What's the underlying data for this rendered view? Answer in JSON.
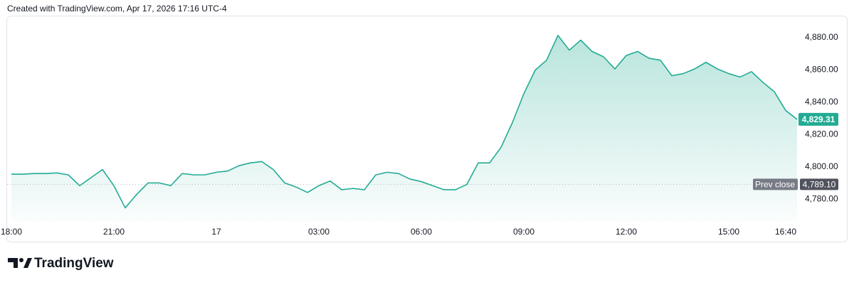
{
  "chart_data": {
    "type": "area",
    "title": "Created with TradingView.com, Apr 17, 2026 17:16 UTC-4",
    "brand": "TradingView",
    "color": "#22ab94",
    "categories": [
      "18:00",
      null,
      null,
      null,
      null,
      null,
      null,
      null,
      null,
      "21:00",
      null,
      null,
      null,
      null,
      null,
      null,
      null,
      null,
      "17",
      null,
      null,
      null,
      null,
      null,
      null,
      null,
      null,
      "03:00",
      null,
      null,
      null,
      null,
      null,
      null,
      null,
      null,
      "06:00",
      null,
      null,
      null,
      null,
      null,
      null,
      null,
      null,
      "09:00",
      null,
      null,
      null,
      null,
      null,
      null,
      null,
      null,
      "12:00",
      null,
      null,
      null,
      null,
      null,
      null,
      null,
      null,
      "15:00",
      null,
      null,
      null,
      null,
      "16:40",
      null
    ],
    "values": [
      4795.4,
      4795.4,
      4795.8,
      4795.8,
      4796.2,
      4795,
      4788.3,
      4793.3,
      4798.3,
      4788.3,
      4774.6,
      4782.9,
      4790,
      4790,
      4788.3,
      4795.8,
      4795,
      4795,
      4796.6,
      4797.4,
      4800.7,
      4802.4,
      4803.2,
      4798.3,
      4790,
      4787.5,
      4784.1,
      4788.3,
      4791.2,
      4785.8,
      4786.6,
      4785.8,
      4795,
      4796.6,
      4795.8,
      4792.4,
      4790.8,
      4788.3,
      4785.8,
      4785.8,
      4789.1,
      4802.4,
      4802.4,
      4812,
      4827.3,
      4845.1,
      4859.7,
      4865.9,
      4881.2,
      4872.1,
      4878.3,
      4871.3,
      4868,
      4860.5,
      4868.8,
      4871.3,
      4867.1,
      4865.9,
      4856.3,
      4857.6,
      4860.5,
      4864.6,
      4860.5,
      4857.6,
      4855.5,
      4858.8,
      4852.2,
      4846.4,
      4834.8,
      4829.31
    ],
    "value_labels": [
      null,
      null,
      null,
      null,
      null,
      null,
      null,
      null,
      null,
      null,
      null,
      null,
      null,
      null,
      null,
      null,
      null,
      null,
      null,
      null,
      null,
      null,
      null,
      null,
      null,
      null,
      null,
      null,
      null,
      null,
      null,
      null,
      null,
      null,
      null,
      null,
      null,
      null,
      null,
      null,
      null,
      null,
      null,
      null,
      null,
      null,
      null,
      null,
      null,
      null,
      null,
      null,
      null,
      null,
      null,
      null,
      null,
      null,
      null,
      null,
      null,
      null,
      null,
      null,
      null,
      null,
      null,
      null,
      null,
      "4,829.31"
    ],
    "prev_close": {
      "name": "Prev close",
      "value": 4789.1,
      "label": "4,789.10"
    },
    "ylim": [
      4766,
      4893
    ],
    "yticks": [
      {
        "value": 4780,
        "label": "4,780.00"
      },
      {
        "value": 4800,
        "label": "4,800.00"
      },
      {
        "value": 4820,
        "label": "4,820.00"
      },
      {
        "value": 4840,
        "label": "4,840.00"
      },
      {
        "value": 4860,
        "label": "4,860.00"
      },
      {
        "value": 4880,
        "label": "4,880.00"
      }
    ],
    "grid": false
  }
}
